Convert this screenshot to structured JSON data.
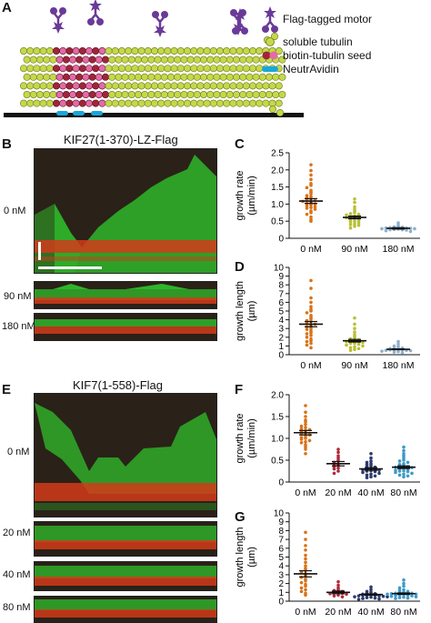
{
  "panel_labels": {
    "a": "A",
    "b": "B",
    "c": "C",
    "d": "D",
    "e": "E",
    "f": "F",
    "g": "G"
  },
  "legend": {
    "motor": "Flag-tagged motor",
    "soluble": "soluble tubulin",
    "seed": "biotin-tubulin seed",
    "neutravidin": "NeutrAvidin"
  },
  "colors": {
    "soluble": "#c5d84a",
    "seed": "#a0253a",
    "motor": "#6a3a98",
    "neutravidin": "#1aa6d8",
    "kymo_green": "#2fb52a",
    "kymo_red": "#d23a1a",
    "kymo_bg": "#2a2118"
  },
  "kif27": {
    "title": "KIF27(1-370)-LZ-Flag",
    "labels": [
      "0 nM",
      "90 nM",
      "180 nM"
    ]
  },
  "kif7": {
    "title": "KIF7(1-558)-Flag",
    "labels": [
      "0 nM",
      "20 nM",
      "40 nM",
      "80 nM"
    ]
  },
  "chart_data": [
    {
      "panel": "C",
      "type": "scatter",
      "ylabel_lines": [
        "growth rate",
        "(µm/min)"
      ],
      "categories": [
        "0 nM",
        "90 nM",
        "180 nM"
      ],
      "ylim": [
        0,
        2.5
      ],
      "yticks": [
        "0",
        "0.5",
        "1.0",
        "1.5",
        "2.0",
        "2.5"
      ],
      "colors": [
        "#d8731a",
        "#b9c034",
        "#8fb0cc"
      ],
      "means": [
        1.09,
        0.61,
        0.29
      ],
      "sem": [
        0.07,
        0.04,
        0.02
      ],
      "points": [
        [
          2.15,
          1.98,
          1.85,
          1.72,
          1.6,
          1.55,
          1.48,
          1.4,
          1.35,
          1.3,
          1.25,
          1.22,
          1.18,
          1.15,
          1.12,
          1.1,
          1.08,
          1.05,
          1.02,
          1.0,
          0.98,
          0.95,
          0.92,
          0.9,
          0.88,
          0.85,
          0.8,
          0.75,
          0.7,
          0.62,
          0.55,
          0.5
        ],
        [
          1.15,
          1.05,
          0.92,
          0.85,
          0.8,
          0.75,
          0.72,
          0.7,
          0.68,
          0.65,
          0.62,
          0.6,
          0.6,
          0.58,
          0.55,
          0.52,
          0.5,
          0.48,
          0.45,
          0.42,
          0.4,
          0.38,
          0.35,
          0.3
        ],
        [
          0.45,
          0.38,
          0.35,
          0.33,
          0.32,
          0.31,
          0.3,
          0.3,
          0.29,
          0.28,
          0.28,
          0.27,
          0.26,
          0.25,
          0.25,
          0.24,
          0.22,
          0.2
        ]
      ]
    },
    {
      "panel": "D",
      "type": "scatter",
      "ylabel_lines": [
        "growth length",
        "(µm)"
      ],
      "categories": [
        "0 nM",
        "90 nM",
        "180 nM"
      ],
      "ylim": [
        0,
        10
      ],
      "yticks": [
        "0",
        "1",
        "2",
        "3",
        "4",
        "5",
        "6",
        "7",
        "8",
        "9",
        "10"
      ],
      "colors": [
        "#d8731a",
        "#b9c034",
        "#8fb0cc"
      ],
      "means": [
        3.5,
        1.6,
        0.62
      ],
      "sem": [
        0.3,
        0.15,
        0.05
      ],
      "points": [
        [
          8.5,
          7.6,
          6.5,
          6.0,
          5.5,
          5.2,
          5.0,
          4.8,
          4.5,
          4.3,
          4.1,
          3.9,
          3.8,
          3.6,
          3.5,
          3.3,
          3.2,
          3.0,
          2.9,
          2.7,
          2.5,
          2.4,
          2.2,
          2.0,
          1.8,
          1.6,
          1.5,
          1.3,
          1.1,
          0.8
        ],
        [
          4.2,
          3.5,
          3.0,
          2.6,
          2.3,
          2.1,
          1.9,
          1.8,
          1.7,
          1.6,
          1.6,
          1.5,
          1.5,
          1.4,
          1.3,
          1.3,
          1.2,
          1.1,
          1.0,
          0.9,
          0.8,
          0.7,
          0.6,
          0.5
        ],
        [
          1.5,
          1.2,
          1.0,
          0.9,
          0.8,
          0.75,
          0.7,
          0.65,
          0.6,
          0.6,
          0.55,
          0.5,
          0.5,
          0.45,
          0.4,
          0.35,
          0.3,
          0.25
        ]
      ]
    },
    {
      "panel": "F",
      "type": "scatter",
      "ylabel_lines": [
        "growth rate",
        "(µm/min)"
      ],
      "categories": [
        "0 nM",
        "20 nM",
        "40 nM",
        "80 nM"
      ],
      "ylim": [
        0,
        2.0
      ],
      "yticks": [
        "0",
        "0.5",
        "1.0",
        "1.5",
        "2.0"
      ],
      "colors": [
        "#d8731a",
        "#b02a3a",
        "#2c3b6e",
        "#3f9ac8"
      ],
      "means": [
        1.13,
        0.42,
        0.3,
        0.34
      ],
      "sem": [
        0.05,
        0.05,
        0.03,
        0.03
      ],
      "points": [
        [
          1.75,
          1.6,
          1.5,
          1.42,
          1.38,
          1.32,
          1.28,
          1.25,
          1.22,
          1.2,
          1.18,
          1.15,
          1.12,
          1.1,
          1.08,
          1.05,
          1.02,
          1.0,
          0.98,
          0.95,
          0.92,
          0.9,
          0.85,
          0.8,
          0.75,
          0.65
        ],
        [
          0.75,
          0.68,
          0.6,
          0.55,
          0.5,
          0.45,
          0.42,
          0.4,
          0.38,
          0.35,
          0.32,
          0.3,
          0.25,
          0.2
        ],
        [
          0.65,
          0.55,
          0.48,
          0.45,
          0.42,
          0.4,
          0.38,
          0.36,
          0.34,
          0.32,
          0.3,
          0.3,
          0.28,
          0.27,
          0.26,
          0.25,
          0.24,
          0.22,
          0.2,
          0.18,
          0.16,
          0.14,
          0.12,
          0.1
        ],
        [
          0.8,
          0.72,
          0.65,
          0.6,
          0.55,
          0.5,
          0.48,
          0.45,
          0.42,
          0.4,
          0.38,
          0.36,
          0.35,
          0.34,
          0.33,
          0.32,
          0.3,
          0.28,
          0.27,
          0.26,
          0.25,
          0.24,
          0.22,
          0.2,
          0.18,
          0.16,
          0.14,
          0.12
        ]
      ]
    },
    {
      "panel": "G",
      "type": "scatter",
      "ylabel_lines": [
        "growth length",
        "(µm)"
      ],
      "categories": [
        "0 nM",
        "20 nM",
        "40 nM",
        "80 nM"
      ],
      "ylim": [
        0,
        10
      ],
      "yticks": [
        "0",
        "1",
        "2",
        "3",
        "4",
        "5",
        "6",
        "7",
        "8",
        "9",
        "10"
      ],
      "colors": [
        "#d8731a",
        "#b02a3a",
        "#2c3b6e",
        "#3f9ac8"
      ],
      "means": [
        3.1,
        1.0,
        0.75,
        0.85
      ],
      "sem": [
        0.35,
        0.15,
        0.08,
        0.08
      ],
      "points": [
        [
          7.8,
          7.0,
          6.3,
          5.8,
          5.2,
          4.8,
          4.4,
          4.0,
          3.7,
          3.5,
          3.3,
          3.1,
          2.9,
          2.7,
          2.5,
          2.3,
          2.1,
          1.9,
          1.7,
          1.5,
          1.3,
          1.1,
          0.9,
          0.7
        ],
        [
          2.2,
          1.8,
          1.5,
          1.3,
          1.2,
          1.1,
          1.0,
          0.95,
          0.9,
          0.85,
          0.8,
          0.7,
          0.6,
          0.5
        ],
        [
          1.6,
          1.3,
          1.1,
          1.0,
          0.9,
          0.85,
          0.8,
          0.75,
          0.7,
          0.7,
          0.65,
          0.6,
          0.6,
          0.55,
          0.5,
          0.5,
          0.45,
          0.4,
          0.35,
          0.3,
          0.25,
          0.2
        ],
        [
          2.4,
          2.0,
          1.7,
          1.5,
          1.3,
          1.2,
          1.1,
          1.0,
          1.0,
          0.95,
          0.9,
          0.9,
          0.85,
          0.8,
          0.8,
          0.75,
          0.7,
          0.7,
          0.65,
          0.6,
          0.55,
          0.5,
          0.45,
          0.4,
          0.35,
          0.3
        ]
      ]
    }
  ]
}
